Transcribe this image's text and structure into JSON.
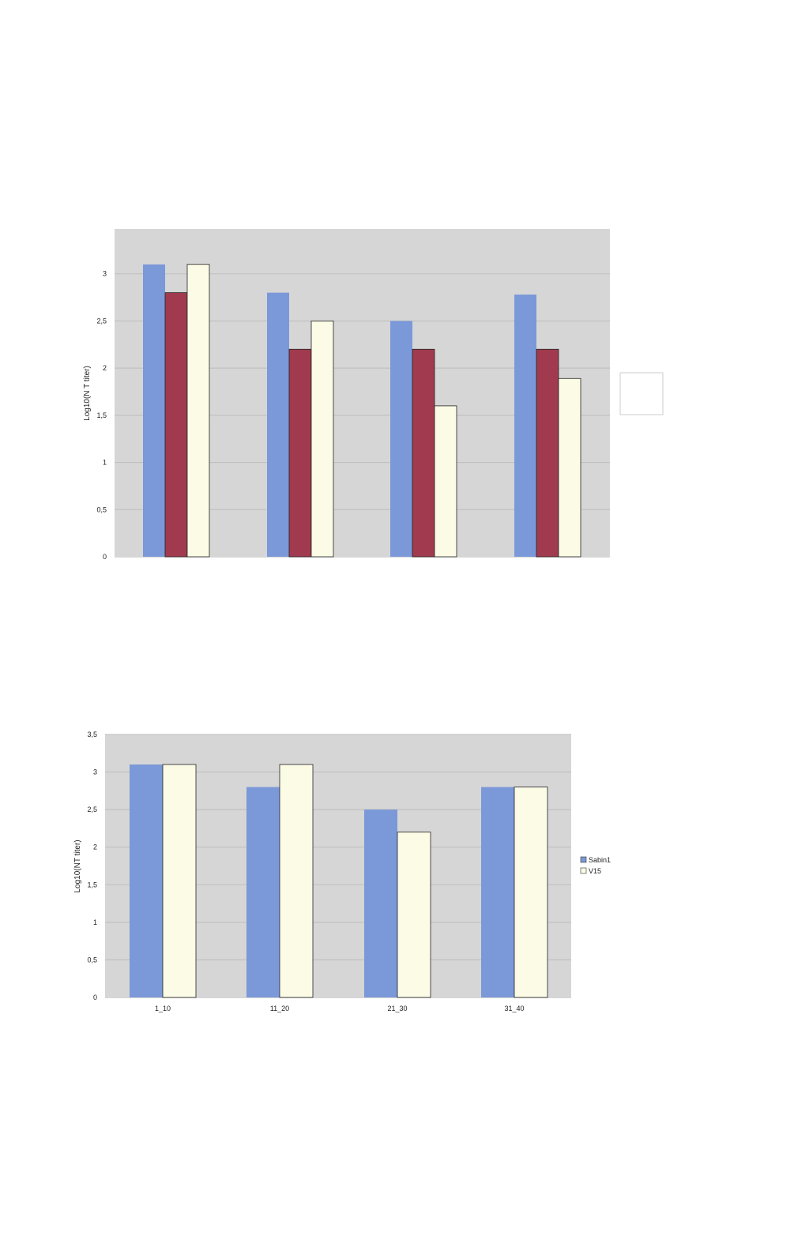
{
  "chart_data": [
    {
      "type": "bar",
      "title": "",
      "xlabel": "",
      "ylabel": "Log10(N T titer)",
      "ylim": [
        0,
        3.5
      ],
      "yticks": [
        "0",
        "0,5",
        "1",
        "1,5",
        "2",
        "2,5",
        "3"
      ],
      "yticks_values": [
        0,
        0.5,
        1,
        1.5,
        2,
        2.5,
        3
      ],
      "categories": [
        "",
        "",
        "",
        ""
      ],
      "series": [
        {
          "color": "#7b98d8",
          "values": [
            3.1,
            2.8,
            2.5,
            2.78
          ]
        },
        {
          "color": "#a13a4e",
          "values": [
            2.8,
            2.2,
            2.2,
            2.2
          ]
        },
        {
          "color": "#fbfbe6",
          "values": [
            3.1,
            2.5,
            1.6,
            1.89
          ]
        }
      ],
      "grid": true,
      "background": "#d6d6d6",
      "legend": "right"
    },
    {
      "type": "bar",
      "title": "",
      "xlabel": "",
      "ylabel": "Log10(NT titer)",
      "ylim": [
        0,
        3.5
      ],
      "yticks": [
        "0",
        "0,5",
        "1",
        "1,5",
        "2",
        "2,5",
        "3",
        "3,5"
      ],
      "yticks_values": [
        0,
        0.5,
        1,
        1.5,
        2,
        2.5,
        3,
        3.5
      ],
      "categories": [
        "1_10",
        "11_20",
        "21_30",
        "31_40"
      ],
      "series": [
        {
          "name": "Sabin1",
          "color": "#7b98d8",
          "values": [
            3.1,
            2.8,
            2.5,
            2.8
          ]
        },
        {
          "name": "V15",
          "color": "#fbfbe6",
          "values": [
            3.1,
            3.1,
            2.2,
            2.8
          ]
        }
      ],
      "grid": true,
      "background": "#d6d6d6",
      "legend": "right"
    }
  ]
}
